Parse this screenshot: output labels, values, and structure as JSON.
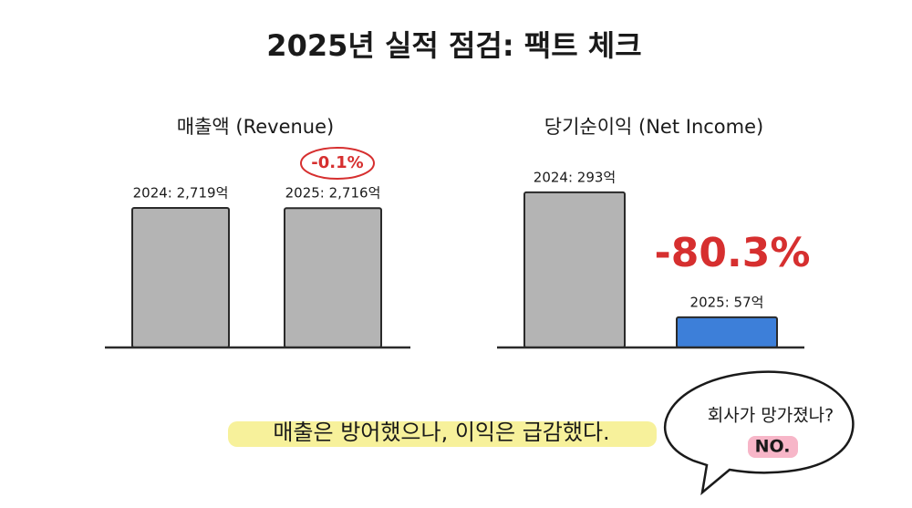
{
  "title": "2025년 실적 점검: 팩트 체크",
  "chart_data": [
    {
      "type": "bar",
      "title": "매출액 (Revenue)",
      "values": [
        2719,
        2716
      ],
      "value_labels": [
        "2024: 2,719억",
        "2025: 2,716억"
      ],
      "colors": [
        "#b4b4b4",
        "#b4b4b4"
      ],
      "ylim": [
        0,
        3200
      ],
      "annotation": "-0.1%"
    },
    {
      "type": "bar",
      "title": "당기순이익 (Net Income)",
      "values": [
        293,
        57
      ],
      "value_labels": [
        "2024: 293억",
        "2025: 57억"
      ],
      "colors": [
        "#b4b4b4",
        "#3d7fd9"
      ],
      "ylim": [
        0,
        310
      ],
      "annotation": "-80.3%"
    }
  ],
  "caption": "매출은 방어했으나, 이익은 급감했다.",
  "bubble": {
    "question": "회사가 망가졌나?",
    "answer": "NO."
  }
}
